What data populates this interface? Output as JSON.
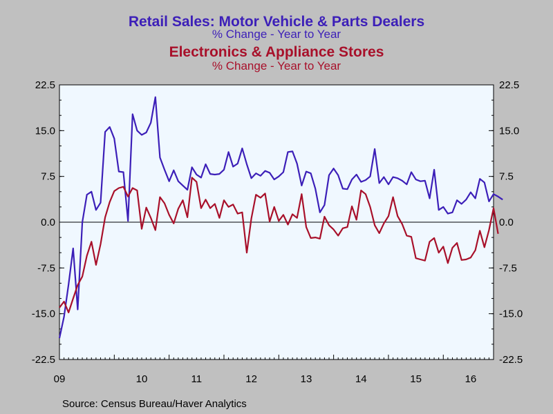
{
  "titles": {
    "line1": "Retail Sales: Motor Vehicle & Parts Dealers",
    "line2": "% Change - Year to Year",
    "line3": "Electronics & Appliance Stores",
    "line4": "% Change - Year to Year"
  },
  "source": "Source:  Census Bureau/Haver Analytics",
  "colors": {
    "background": "#c0c0c0",
    "plot": "#f0f8ff",
    "series1": "#3c1fb8",
    "series2": "#a8102a",
    "axis": "#000000"
  },
  "chart_data": {
    "type": "line",
    "x_unit": "months since Jan 2009",
    "x_range": [
      0,
      95
    ],
    "ylim": [
      -22.5,
      22.5
    ],
    "y_ticks": [
      "22.5",
      "15.0",
      "7.5",
      "0.0",
      "-7.5",
      "-15.0",
      "-22.5"
    ],
    "x_ticks": [
      {
        "label": "09",
        "x": 0
      },
      {
        "label": "10",
        "x": 12
      },
      {
        "label": "11",
        "x": 24
      },
      {
        "label": "12",
        "x": 36
      },
      {
        "label": "13",
        "x": 48
      },
      {
        "label": "14",
        "x": 60
      },
      {
        "label": "15",
        "x": 72
      },
      {
        "label": "16",
        "x": 84
      }
    ],
    "zero_line": true,
    "series": [
      {
        "name": "Retail Sales: Motor Vehicle & Parts Dealers",
        "color": "#3c1fb8",
        "values": [
          -19.0,
          -15.5,
          -10.2,
          -4.3,
          -14.3,
          0.0,
          4.5,
          5.0,
          2.0,
          3.2,
          14.8,
          15.6,
          13.7,
          8.3,
          8.2,
          0.2,
          17.7,
          15.0,
          14.3,
          14.7,
          16.3,
          20.5,
          10.6,
          8.6,
          6.7,
          8.5,
          6.7,
          6.0,
          5.3,
          9.0,
          7.8,
          7.3,
          9.5,
          7.9,
          7.8,
          7.9,
          8.6,
          11.5,
          9.1,
          9.6,
          12.1,
          9.5,
          7.2,
          8.0,
          7.6,
          8.4,
          8.1,
          7.0,
          7.5,
          8.2,
          11.5,
          11.6,
          9.6,
          6.0,
          8.3,
          8.0,
          5.5,
          1.6,
          2.8,
          7.7,
          8.8,
          7.7,
          5.5,
          5.4,
          7.0,
          7.8,
          6.6,
          6.9,
          7.5,
          12.0,
          6.4,
          7.4,
          6.2,
          7.4,
          7.2,
          6.8,
          6.2,
          8.2,
          7.0,
          6.7,
          6.8,
          3.9,
          8.6,
          2.0,
          2.5,
          1.4,
          1.6,
          3.6,
          3.0,
          3.7,
          4.9,
          3.9,
          7.1,
          6.5,
          3.4,
          4.6,
          4.2,
          3.7
        ]
      },
      {
        "name": "Electronics & Appliance Stores",
        "color": "#a8102a",
        "values": [
          -14.0,
          -13.0,
          -14.8,
          -12.5,
          -10.3,
          -8.9,
          -5.5,
          -3.2,
          -7.0,
          -3.6,
          0.8,
          3.3,
          5.1,
          5.6,
          5.8,
          4.2,
          5.6,
          5.2,
          -1.1,
          2.4,
          0.7,
          -1.3,
          4.1,
          3.1,
          1.2,
          -0.2,
          2.2,
          3.6,
          0.8,
          7.3,
          6.6,
          2.3,
          3.7,
          2.3,
          3.0,
          0.7,
          3.6,
          2.5,
          2.9,
          1.4,
          1.6,
          -5.0,
          0.6,
          4.5,
          4.0,
          4.7,
          0.1,
          2.5,
          0.2,
          1.2,
          -0.4,
          1.3,
          0.7,
          4.6,
          -0.8,
          -2.6,
          -2.5,
          -2.7,
          0.9,
          -0.5,
          -1.2,
          -2.2,
          -1.0,
          -0.8,
          2.6,
          0.4,
          5.2,
          4.6,
          2.5,
          -0.5,
          -1.8,
          -0.2,
          1.0,
          4.1,
          1.0,
          -0.3,
          -2.2,
          -2.4,
          -5.9,
          -6.1,
          -6.3,
          -3.2,
          -2.6,
          -5.0,
          -4.0,
          -6.7,
          -4.2,
          -3.4,
          -6.2,
          -6.1,
          -5.8,
          -4.6,
          -1.4,
          -4.1,
          -1.3,
          2.3,
          -1.9
        ]
      }
    ]
  }
}
